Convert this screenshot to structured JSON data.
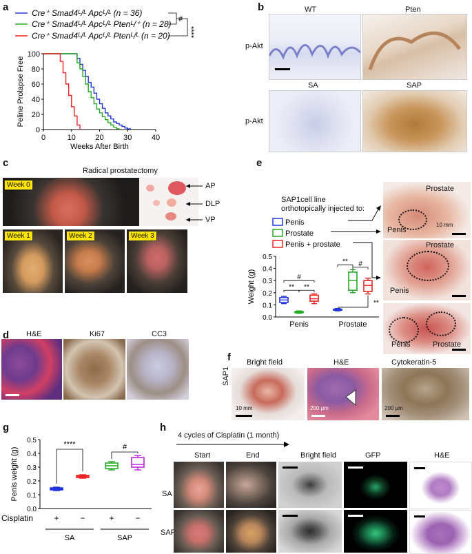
{
  "panels": {
    "a": "a",
    "b": "b",
    "c": "c",
    "d": "d",
    "e": "e",
    "f": "f",
    "g": "g",
    "h": "h"
  },
  "panel_a": {
    "legend": [
      {
        "text": "Cre⁺ Smad4ᴸ/ᴸ Apcᴸ/ᴸ (n = 36)",
        "color": "#2233dd"
      },
      {
        "text": "Cre⁺ Smad4ᴸ/ᴸ Apcᴸ/ᴸ Ptenᴸ/⁺ (n = 28)",
        "color": "#22aa22"
      },
      {
        "text": "Cre⁺ Smad4ᴸ/ᴸ Apcᴸ/ᴸ Ptenᴸ/ᴸ (n = 20)",
        "color": "#ee2222"
      }
    ],
    "sig1": "#",
    "sig2": "****"
  },
  "chart_data": [
    {
      "type": "line",
      "xlabel": "Weeks After Birth",
      "ylabel": "Peline Prolapse Free",
      "xlim": [
        0,
        40
      ],
      "ylim": [
        0,
        100
      ],
      "xticks": [
        0,
        10,
        20,
        30,
        40
      ],
      "yticks": [
        0,
        20,
        40,
        60,
        80,
        100
      ],
      "series": [
        {
          "name": "Cre⁺ Smad4ᴸ/ᴸ Apcᴸ/ᴸ (n = 36)",
          "color": "#2233dd",
          "x": [
            0,
            12,
            13,
            14,
            15,
            16,
            17,
            18,
            19,
            20,
            21,
            22,
            23,
            24,
            25,
            26,
            27,
            28,
            29,
            30,
            31
          ],
          "y": [
            100,
            94,
            86,
            78,
            70,
            62,
            56,
            48,
            40,
            34,
            28,
            22,
            18,
            14,
            10,
            8,
            6,
            4,
            2,
            1,
            0
          ]
        },
        {
          "name": "Cre⁺ Smad4ᴸ/ᴸ Apcᴸ/ᴸ Ptenᴸ/⁺ (n = 28)",
          "color": "#22aa22",
          "x": [
            0,
            12,
            13,
            14,
            15,
            16,
            17,
            18,
            19,
            20,
            21,
            22,
            23,
            24,
            25,
            26,
            27
          ],
          "y": [
            100,
            88,
            80,
            70,
            60,
            50,
            42,
            34,
            27,
            22,
            17,
            13,
            9,
            6,
            3,
            1,
            0
          ]
        },
        {
          "name": "Cre⁺ Smad4ᴸ/ᴸ Apcᴸ/ᴸ Ptenᴸ/ᴸ (n = 20)",
          "color": "#ee2222",
          "x": [
            0,
            6,
            7,
            8,
            9,
            10,
            11,
            12,
            13
          ],
          "y": [
            100,
            90,
            75,
            60,
            45,
            30,
            18,
            6,
            0
          ]
        }
      ]
    },
    {
      "type": "box",
      "ylabel": "Weight (g)",
      "ylim": [
        0,
        0.5
      ],
      "yticks": [
        0.0,
        0.1,
        0.2,
        0.3,
        0.4,
        0.5
      ],
      "categories": [
        "Penis",
        "Prostate"
      ],
      "series": [
        {
          "name": "Penis",
          "color": "#2233dd",
          "boxes": [
            {
              "min": 0.11,
              "q1": 0.12,
              "median": 0.14,
              "q3": 0.16,
              "max": 0.17
            },
            {
              "min": 0.05,
              "q1": 0.055,
              "median": 0.06,
              "q3": 0.065,
              "max": 0.07
            }
          ]
        },
        {
          "name": "Prostate",
          "color": "#22aa22",
          "boxes": [
            {
              "min": 0.03,
              "q1": 0.035,
              "median": 0.04,
              "q3": 0.045,
              "max": 0.05
            },
            {
              "min": 0.2,
              "q1": 0.22,
              "median": 0.3,
              "q3": 0.37,
              "max": 0.39
            }
          ]
        },
        {
          "name": "Penis + prostate",
          "color": "#ee2222",
          "boxes": [
            {
              "min": 0.11,
              "q1": 0.13,
              "median": 0.15,
              "q3": 0.18,
              "max": 0.19
            },
            {
              "min": 0.19,
              "q1": 0.21,
              "median": 0.26,
              "q3": 0.3,
              "max": 0.32
            }
          ]
        }
      ],
      "annotations": [
        "**",
        "**",
        "#",
        "**",
        "#",
        "**"
      ]
    },
    {
      "type": "box",
      "ylabel": "Penis weight (g)",
      "ylim": [
        0,
        0.5
      ],
      "yticks": [
        0.0,
        0.1,
        0.2,
        0.3,
        0.4,
        0.5
      ],
      "cisplatin_label": "Cisplatin",
      "groups": [
        "SA",
        "SAP"
      ],
      "boxes": [
        {
          "group": "SA",
          "cisplatin": "+",
          "color": "#2233dd",
          "min": 0.13,
          "q1": 0.135,
          "median": 0.14,
          "q3": 0.15,
          "max": 0.155
        },
        {
          "group": "SA",
          "cisplatin": "−",
          "color": "#ee2222",
          "min": 0.22,
          "q1": 0.225,
          "median": 0.23,
          "q3": 0.24,
          "max": 0.245
        },
        {
          "group": "SAP",
          "cisplatin": "+",
          "color": "#22aa22",
          "min": 0.28,
          "q1": 0.29,
          "median": 0.31,
          "q3": 0.33,
          "max": 0.34
        },
        {
          "group": "SAP",
          "cisplatin": "−",
          "color": "#bb22dd",
          "min": 0.28,
          "q1": 0.3,
          "median": 0.32,
          "q3": 0.37,
          "max": 0.385
        }
      ],
      "sig_sa": "****",
      "sig_sap": "#"
    }
  ],
  "panel_b": {
    "wt": "WT",
    "pten": "Pten",
    "sa": "SA",
    "sap": "SAP",
    "row_label": "p-Akt"
  },
  "panel_c": {
    "title": "Radical prostatectomy",
    "week0": "Week 0",
    "week1": "Week 1",
    "week2": "Week 2",
    "week3": "Week 3",
    "ap": "AP",
    "dlp": "DLP",
    "vp": "VP"
  },
  "panel_d": {
    "he": "H&E",
    "ki67": "Ki67",
    "cc3": "CC3"
  },
  "panel_e": {
    "intro": "SAP1cell line\northotopically injected to:",
    "legend": [
      "Penis",
      "Prostate",
      "Penis + prostate"
    ],
    "prostate": "Prostate",
    "penis": "Penis",
    "scale": "10 mm"
  },
  "panel_f": {
    "bf": "Bright field",
    "he": "H&E",
    "ck5": "Cytokeratin-5",
    "row": "SAP1",
    "s1": "10 mm",
    "s2": "200 µm",
    "s3": "200 µm"
  },
  "panel_h": {
    "title": "4 cycles of Cisplatin (1 month)",
    "start": "Start",
    "end": "End",
    "bf": "Bright field",
    "gfp": "GFP",
    "he": "H&E",
    "sa": "SA",
    "sap": "SAP"
  }
}
